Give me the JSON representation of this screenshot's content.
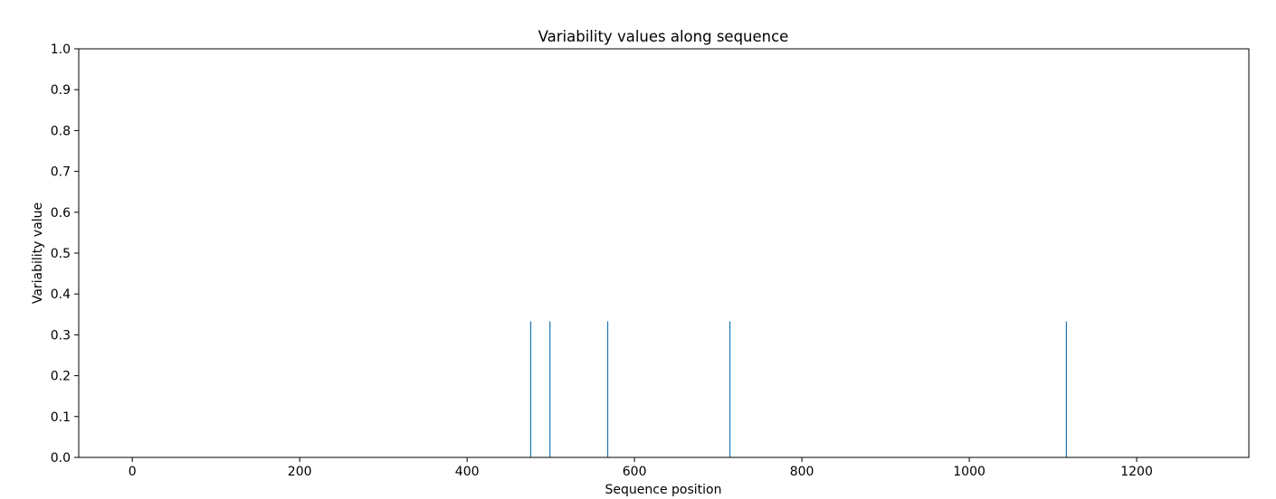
{
  "chart_data": {
    "type": "bar",
    "title": "Variability values along sequence",
    "xlabel": "Sequence position",
    "ylabel": "Variability value",
    "xlim": [
      -64,
      1334
    ],
    "ylim": [
      0,
      1.0
    ],
    "x_ticks": [
      0,
      200,
      400,
      600,
      800,
      1000,
      1200
    ],
    "y_ticks": [
      0.0,
      0.1,
      0.2,
      0.3,
      0.4,
      0.5,
      0.6,
      0.7,
      0.8,
      0.9,
      1.0
    ],
    "x_tick_labels": [
      "0",
      "200",
      "400",
      "600",
      "800",
      "1000",
      "1200"
    ],
    "y_tick_labels": [
      "0.0",
      "0.1",
      "0.2",
      "0.3",
      "0.4",
      "0.5",
      "0.6",
      "0.7",
      "0.8",
      "0.9",
      "1.0"
    ],
    "grid": false,
    "color": "#1f77b4",
    "points": [
      {
        "x": 476,
        "y": 0.333
      },
      {
        "x": 499,
        "y": 0.333
      },
      {
        "x": 568,
        "y": 0.333
      },
      {
        "x": 714,
        "y": 0.333
      },
      {
        "x": 1116,
        "y": 0.333
      }
    ]
  }
}
